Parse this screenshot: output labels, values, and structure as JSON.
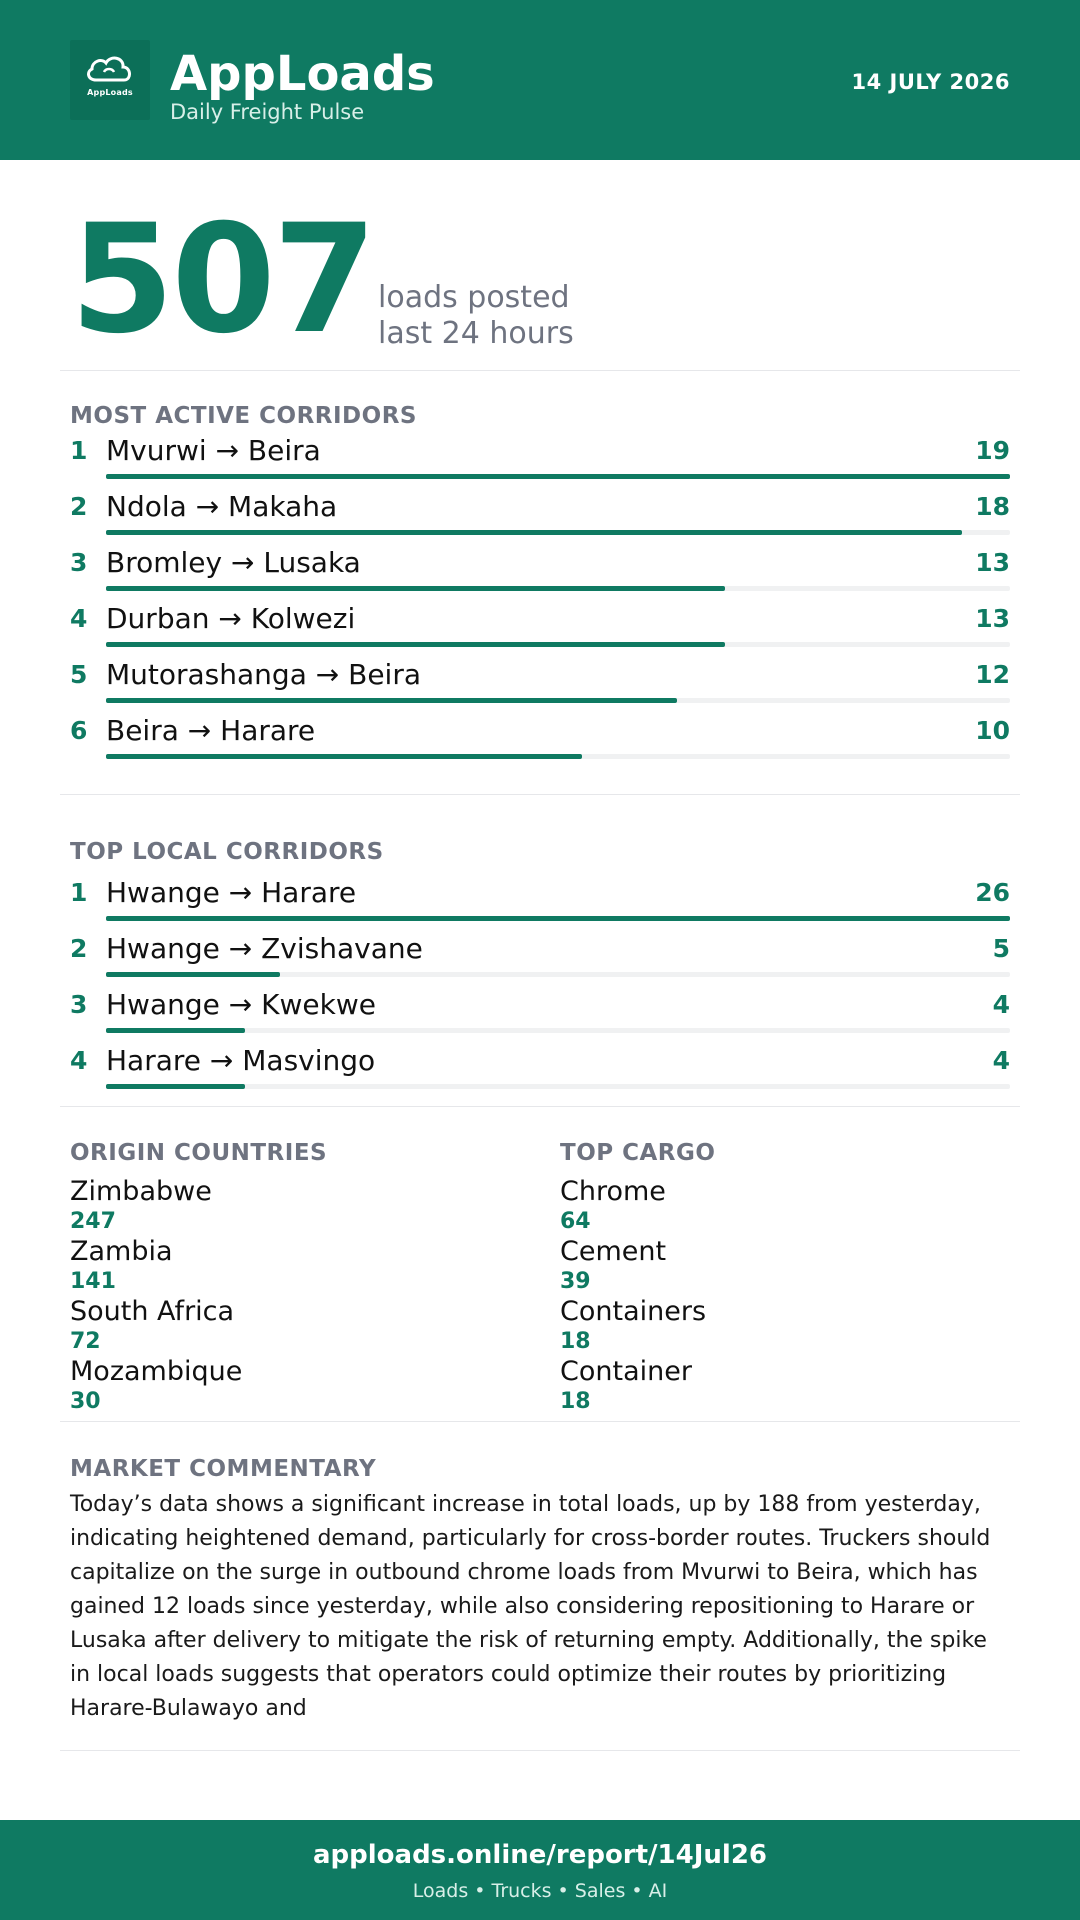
{
  "header": {
    "logo_text": "AppLoads",
    "brand": "AppLoads",
    "tagline": "Daily Freight Pulse",
    "date": "14 JULY 2026"
  },
  "hero": {
    "value": "507",
    "label_line1": "loads posted",
    "label_line2": "last 24 hours"
  },
  "active_corridors": {
    "title": "MOST ACTIVE CORRIDORS",
    "items": [
      {
        "rank": "1",
        "name": "Mvurwi → Beira",
        "value": 19
      },
      {
        "rank": "2",
        "name": "Ndola → Makaha",
        "value": 18
      },
      {
        "rank": "3",
        "name": "Bromley → Lusaka",
        "value": 13
      },
      {
        "rank": "4",
        "name": "Durban → Kolwezi",
        "value": 13
      },
      {
        "rank": "5",
        "name": "Mutorashanga → Beira",
        "value": 12
      },
      {
        "rank": "6",
        "name": "Beira → Harare",
        "value": 10
      }
    ]
  },
  "local_corridors": {
    "title": "TOP LOCAL CORRIDORS",
    "items": [
      {
        "rank": "1",
        "name": "Hwange → Harare",
        "value": 26
      },
      {
        "rank": "2",
        "name": "Hwange → Zvishavane",
        "value": 5
      },
      {
        "rank": "3",
        "name": "Hwange → Kwekwe",
        "value": 4
      },
      {
        "rank": "4",
        "name": "Harare → Masvingo",
        "value": 4
      }
    ]
  },
  "origin_countries": {
    "title": "ORIGIN COUNTRIES",
    "items": [
      {
        "name": "Zimbabwe",
        "value": "247"
      },
      {
        "name": "Zambia",
        "value": "141"
      },
      {
        "name": "South Africa",
        "value": "72"
      },
      {
        "name": "Mozambique",
        "value": "30"
      }
    ]
  },
  "top_cargo": {
    "title": "TOP CARGO",
    "items": [
      {
        "name": "Chrome",
        "value": "64"
      },
      {
        "name": "Cement",
        "value": "39"
      },
      {
        "name": "Containers",
        "value": "18"
      },
      {
        "name": "Container",
        "value": "18"
      }
    ]
  },
  "commentary": {
    "title": "MARKET COMMENTARY",
    "text": "Today’s data shows a significant increase in total loads, up by 188 from yesterday, indicating heightened demand, particularly for cross-border routes. Truckers should capitalize on the surge in outbound chrome loads from Mvurwi to Beira, which has gained 12 loads since yesterday, while also considering repositioning to Harare or Lusaka after delivery to mitigate the risk of returning empty. Additionally, the spike in local loads suggests that operators could optimize their routes by prioritizing Harare-Bulawayo and"
  },
  "footer": {
    "url": "apploads.online/report/14Jul26",
    "sub": "Loads • Trucks • Sales • AI"
  },
  "colors": {
    "brand_green": "#0f7a62",
    "muted_gray": "#6e7380",
    "track_gray": "#f0f1f2"
  },
  "icons": {
    "logo": "cloud-icon"
  }
}
